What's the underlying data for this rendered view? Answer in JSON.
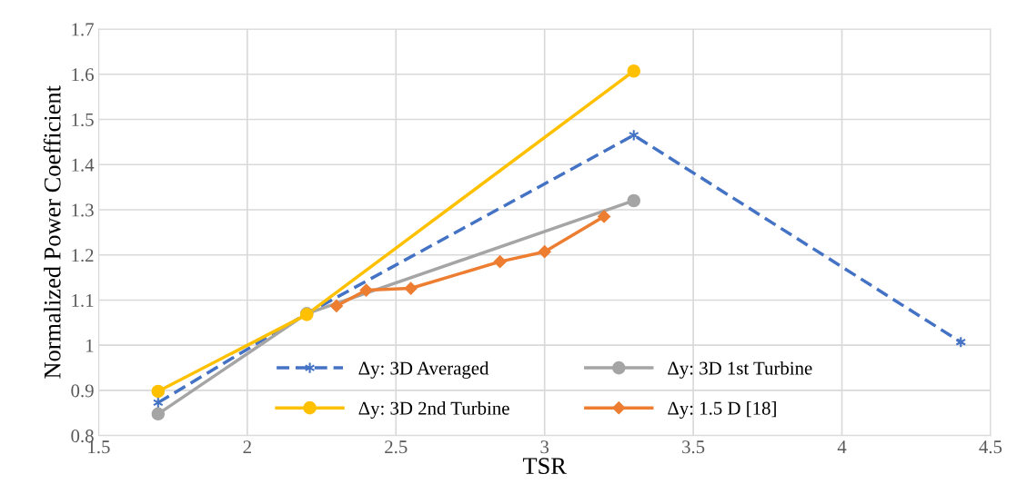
{
  "chart_data": {
    "type": "line",
    "xlabel": "TSR",
    "ylabel": "Normalized Power Coefficient",
    "xlim": [
      1.5,
      4.5
    ],
    "xticks": [
      1.5,
      2,
      2.5,
      3,
      3.5,
      4,
      4.5
    ],
    "ylim": [
      0.8,
      1.7
    ],
    "yticks": [
      0.8,
      0.9,
      1,
      1.1,
      1.2,
      1.3,
      1.4,
      1.5,
      1.6,
      1.7
    ],
    "grid": true,
    "legend": "bottom",
    "series": [
      {
        "name": "Δy: 3D Averaged",
        "color": "#4472c4",
        "marker": "cross",
        "line_style": "dashed",
        "x": [
          1.7,
          2.2,
          3.3,
          4.4
        ],
        "values": [
          0.873,
          1.07,
          1.465,
          1.007
        ]
      },
      {
        "name": "Δy: 3D 1st Turbine",
        "color": "#a5a5a5",
        "marker": "circle",
        "line_style": "solid",
        "x": [
          1.7,
          2.2,
          3.3
        ],
        "values": [
          0.848,
          1.07,
          1.32
        ]
      },
      {
        "name": "Δy: 3D 2nd Turbine",
        "color": "#ffc000",
        "marker": "circle",
        "line_style": "solid",
        "x": [
          1.7,
          2.2,
          3.3
        ],
        "values": [
          0.898,
          1.068,
          1.607
        ]
      },
      {
        "name": "Δy: 1.5 D [18]",
        "color": "#ed7d31",
        "marker": "diamond",
        "line_style": "solid",
        "x": [
          2.3,
          2.4,
          2.55,
          2.85,
          3.0,
          3.2
        ],
        "values": [
          1.087,
          1.122,
          1.126,
          1.185,
          1.207,
          1.285
        ]
      }
    ]
  }
}
